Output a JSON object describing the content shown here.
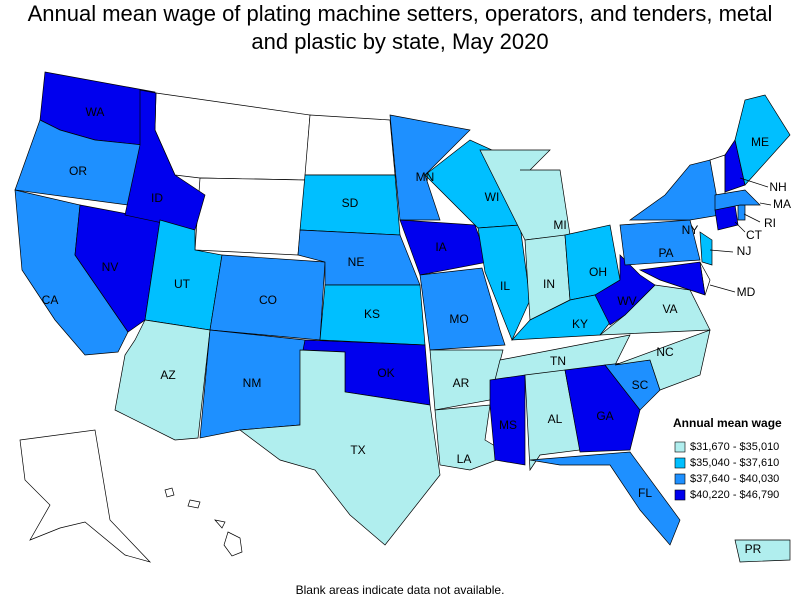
{
  "title": "Annual mean wage of plating machine setters, operators, and tenders, metal and plastic by state, May 2020",
  "footnote": "Blank areas indicate data not available.",
  "legend": {
    "title": "Annual mean wage",
    "items": [
      {
        "label": "$31,670 - $35,010",
        "color": "#b0eeee"
      },
      {
        "label": "$35,040 - $37,610",
        "color": "#00bfff"
      },
      {
        "label": "$37,640 - $40,030",
        "color": "#1e90ff"
      },
      {
        "label": "$40,220 - $46,790",
        "color": "#0000ee"
      }
    ]
  },
  "states": [
    {
      "abbr": "WA",
      "color": "#0000ee"
    },
    {
      "abbr": "OR",
      "color": "#1e90ff"
    },
    {
      "abbr": "CA",
      "color": "#1e90ff"
    },
    {
      "abbr": "NV",
      "color": "#0000ee"
    },
    {
      "abbr": "ID",
      "color": "#0000ee"
    },
    {
      "abbr": "UT",
      "color": "#00bfff"
    },
    {
      "abbr": "CO",
      "color": "#1e90ff"
    },
    {
      "abbr": "AZ",
      "color": "#b0eeee"
    },
    {
      "abbr": "NM",
      "color": "#1e90ff"
    },
    {
      "abbr": "SD",
      "color": "#00bfff"
    },
    {
      "abbr": "NE",
      "color": "#1e90ff"
    },
    {
      "abbr": "KS",
      "color": "#00bfff"
    },
    {
      "abbr": "OK",
      "color": "#0000ee"
    },
    {
      "abbr": "TX",
      "color": "#b0eeee"
    },
    {
      "abbr": "MN",
      "color": "#1e90ff"
    },
    {
      "abbr": "IA",
      "color": "#0000ee"
    },
    {
      "abbr": "MO",
      "color": "#1e90ff"
    },
    {
      "abbr": "AR",
      "color": "#b0eeee"
    },
    {
      "abbr": "LA",
      "color": "#b0eeee"
    },
    {
      "abbr": "WI",
      "color": "#00bfff"
    },
    {
      "abbr": "IL",
      "color": "#00bfff"
    },
    {
      "abbr": "MI",
      "color": "#b0eeee"
    },
    {
      "abbr": "IN",
      "color": "#b0eeee"
    },
    {
      "abbr": "OH",
      "color": "#00bfff"
    },
    {
      "abbr": "KY",
      "color": "#00bfff"
    },
    {
      "abbr": "TN",
      "color": "#b0eeee"
    },
    {
      "abbr": "MS",
      "color": "#0000ee"
    },
    {
      "abbr": "AL",
      "color": "#b0eeee"
    },
    {
      "abbr": "GA",
      "color": "#0000ee"
    },
    {
      "abbr": "FL",
      "color": "#1e90ff"
    },
    {
      "abbr": "SC",
      "color": "#1e90ff"
    },
    {
      "abbr": "NC",
      "color": "#b0eeee"
    },
    {
      "abbr": "VA",
      "color": "#b0eeee"
    },
    {
      "abbr": "WV",
      "color": "#0000ee"
    },
    {
      "abbr": "PA",
      "color": "#1e90ff"
    },
    {
      "abbr": "NY",
      "color": "#1e90ff"
    },
    {
      "abbr": "MD",
      "color": "#0000ee"
    },
    {
      "abbr": "NJ",
      "color": "#00bfff"
    },
    {
      "abbr": "CT",
      "color": "#0000ee"
    },
    {
      "abbr": "RI",
      "color": "#1e90ff"
    },
    {
      "abbr": "MA",
      "color": "#1e90ff"
    },
    {
      "abbr": "NH",
      "color": "#0000ee"
    },
    {
      "abbr": "ME",
      "color": "#00bfff"
    },
    {
      "abbr": "PR",
      "color": "#b0eeee"
    }
  ]
}
